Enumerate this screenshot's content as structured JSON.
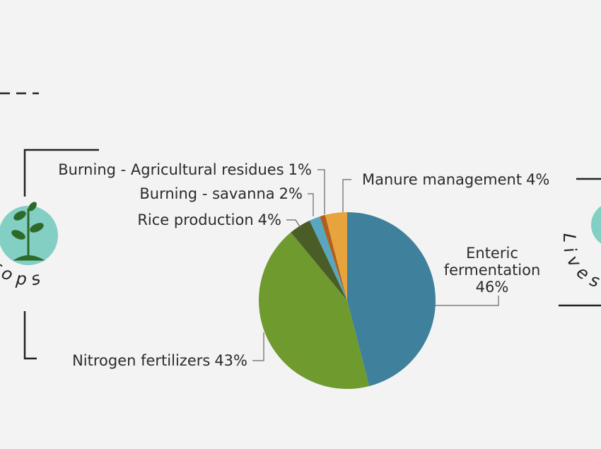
{
  "chart_data": {
    "type": "pie",
    "categories": [
      "Enteric fermentation",
      "Nitrogen fertilizers",
      "Rice production",
      "Burning - savanna",
      "Burning - Agricultural residues",
      "Manure management"
    ],
    "values": [
      46,
      43,
      4,
      2,
      1,
      4
    ],
    "value_labels": [
      "46%",
      "43%",
      "4%",
      "2%",
      "1%",
      "4%"
    ],
    "colors": [
      "#3f809c",
      "#6f9a2e",
      "#4a5d27",
      "#58a6bf",
      "#b0601c",
      "#e8a43c"
    ]
  },
  "icons": [
    {
      "label": "Crops"
    },
    {
      "label": "Livestock"
    }
  ]
}
